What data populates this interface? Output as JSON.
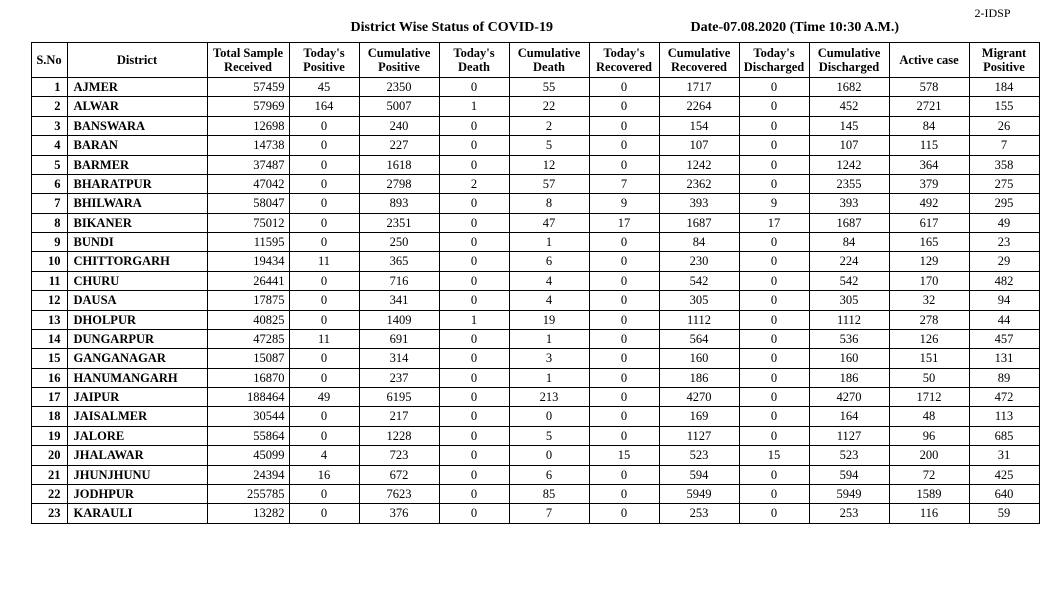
{
  "header": {
    "title": "District Wise Status of  COVID-19",
    "date": "Date-07.08.2020 (Time 10:30 A.M.)",
    "page_id": "2-IDSP"
  },
  "table": {
    "columns": [
      "S.No",
      "District",
      "Total Sample Received",
      "Today's Positive",
      "Cumulative Positive",
      "Today's Death",
      "Cumulative Death",
      "Today's Recovered",
      "Cumulative Recovered",
      "Today's Discharged",
      "Cumulative Discharged",
      "Active  case",
      "Migrant Positive"
    ],
    "rows": [
      {
        "sno": 1,
        "district": "AJMER",
        "sample": 57459,
        "tp": 45,
        "cp": 2350,
        "td": 0,
        "cd": 55,
        "tr": 0,
        "cr": 1717,
        "tdis": 0,
        "cdis": 1682,
        "active": 578,
        "mig": 184
      },
      {
        "sno": 2,
        "district": "ALWAR",
        "sample": 57969,
        "tp": 164,
        "cp": 5007,
        "td": 1,
        "cd": 22,
        "tr": 0,
        "cr": 2264,
        "tdis": 0,
        "cdis": 452,
        "active": 2721,
        "mig": 155
      },
      {
        "sno": 3,
        "district": "BANSWARA",
        "sample": 12698,
        "tp": 0,
        "cp": 240,
        "td": 0,
        "cd": 2,
        "tr": 0,
        "cr": 154,
        "tdis": 0,
        "cdis": 145,
        "active": 84,
        "mig": 26
      },
      {
        "sno": 4,
        "district": "BARAN",
        "sample": 14738,
        "tp": 0,
        "cp": 227,
        "td": 0,
        "cd": 5,
        "tr": 0,
        "cr": 107,
        "tdis": 0,
        "cdis": 107,
        "active": 115,
        "mig": 7
      },
      {
        "sno": 5,
        "district": "BARMER",
        "sample": 37487,
        "tp": 0,
        "cp": 1618,
        "td": 0,
        "cd": 12,
        "tr": 0,
        "cr": 1242,
        "tdis": 0,
        "cdis": 1242,
        "active": 364,
        "mig": 358
      },
      {
        "sno": 6,
        "district": "BHARATPUR",
        "sample": 47042,
        "tp": 0,
        "cp": 2798,
        "td": 2,
        "cd": 57,
        "tr": 7,
        "cr": 2362,
        "tdis": 0,
        "cdis": 2355,
        "active": 379,
        "mig": 275
      },
      {
        "sno": 7,
        "district": "BHILWARA",
        "sample": 58047,
        "tp": 0,
        "cp": 893,
        "td": 0,
        "cd": 8,
        "tr": 9,
        "cr": 393,
        "tdis": 9,
        "cdis": 393,
        "active": 492,
        "mig": 295
      },
      {
        "sno": 8,
        "district": "BIKANER",
        "sample": 75012,
        "tp": 0,
        "cp": 2351,
        "td": 0,
        "cd": 47,
        "tr": 17,
        "cr": 1687,
        "tdis": 17,
        "cdis": 1687,
        "active": 617,
        "mig": 49
      },
      {
        "sno": 9,
        "district": "BUNDI",
        "sample": 11595,
        "tp": 0,
        "cp": 250,
        "td": 0,
        "cd": 1,
        "tr": 0,
        "cr": 84,
        "tdis": 0,
        "cdis": 84,
        "active": 165,
        "mig": 23
      },
      {
        "sno": 10,
        "district": "CHITTORGARH",
        "sample": 19434,
        "tp": 11,
        "cp": 365,
        "td": 0,
        "cd": 6,
        "tr": 0,
        "cr": 230,
        "tdis": 0,
        "cdis": 224,
        "active": 129,
        "mig": 29
      },
      {
        "sno": 11,
        "district": "CHURU",
        "sample": 26441,
        "tp": 0,
        "cp": 716,
        "td": 0,
        "cd": 4,
        "tr": 0,
        "cr": 542,
        "tdis": 0,
        "cdis": 542,
        "active": 170,
        "mig": 482
      },
      {
        "sno": 12,
        "district": "DAUSA",
        "sample": 17875,
        "tp": 0,
        "cp": 341,
        "td": 0,
        "cd": 4,
        "tr": 0,
        "cr": 305,
        "tdis": 0,
        "cdis": 305,
        "active": 32,
        "mig": 94
      },
      {
        "sno": 13,
        "district": "DHOLPUR",
        "sample": 40825,
        "tp": 0,
        "cp": 1409,
        "td": 1,
        "cd": 19,
        "tr": 0,
        "cr": 1112,
        "tdis": 0,
        "cdis": 1112,
        "active": 278,
        "mig": 44
      },
      {
        "sno": 14,
        "district": "DUNGARPUR",
        "sample": 47285,
        "tp": 11,
        "cp": 691,
        "td": 0,
        "cd": 1,
        "tr": 0,
        "cr": 564,
        "tdis": 0,
        "cdis": 536,
        "active": 126,
        "mig": 457
      },
      {
        "sno": 15,
        "district": "GANGANAGAR",
        "sample": 15087,
        "tp": 0,
        "cp": 314,
        "td": 0,
        "cd": 3,
        "tr": 0,
        "cr": 160,
        "tdis": 0,
        "cdis": 160,
        "active": 151,
        "mig": 131
      },
      {
        "sno": 16,
        "district": "HANUMANGARH",
        "sample": 16870,
        "tp": 0,
        "cp": 237,
        "td": 0,
        "cd": 1,
        "tr": 0,
        "cr": 186,
        "tdis": 0,
        "cdis": 186,
        "active": 50,
        "mig": 89
      },
      {
        "sno": 17,
        "district": "JAIPUR",
        "sample": 188464,
        "tp": 49,
        "cp": 6195,
        "td": 0,
        "cd": 213,
        "tr": 0,
        "cr": 4270,
        "tdis": 0,
        "cdis": 4270,
        "active": 1712,
        "mig": 472
      },
      {
        "sno": 18,
        "district": "JAISALMER",
        "sample": 30544,
        "tp": 0,
        "cp": 217,
        "td": 0,
        "cd": 0,
        "tr": 0,
        "cr": 169,
        "tdis": 0,
        "cdis": 164,
        "active": 48,
        "mig": 113
      },
      {
        "sno": 19,
        "district": "JALORE",
        "sample": 55864,
        "tp": 0,
        "cp": 1228,
        "td": 0,
        "cd": 5,
        "tr": 0,
        "cr": 1127,
        "tdis": 0,
        "cdis": 1127,
        "active": 96,
        "mig": 685
      },
      {
        "sno": 20,
        "district": "JHALAWAR",
        "sample": 45099,
        "tp": 4,
        "cp": 723,
        "td": 0,
        "cd": 0,
        "tr": 15,
        "cr": 523,
        "tdis": 15,
        "cdis": 523,
        "active": 200,
        "mig": 31
      },
      {
        "sno": 21,
        "district": "JHUNJHUNU",
        "sample": 24394,
        "tp": 16,
        "cp": 672,
        "td": 0,
        "cd": 6,
        "tr": 0,
        "cr": 594,
        "tdis": 0,
        "cdis": 594,
        "active": 72,
        "mig": 425
      },
      {
        "sno": 22,
        "district": "JODHPUR",
        "sample": 255785,
        "tp": 0,
        "cp": 7623,
        "td": 0,
        "cd": 85,
        "tr": 0,
        "cr": 5949,
        "tdis": 0,
        "cdis": 5949,
        "active": 1589,
        "mig": 640
      },
      {
        "sno": 23,
        "district": "KARAULI",
        "sample": 13282,
        "tp": 0,
        "cp": 376,
        "td": 0,
        "cd": 7,
        "tr": 0,
        "cr": 253,
        "tdis": 0,
        "cdis": 253,
        "active": 116,
        "mig": 59
      }
    ]
  },
  "style": {
    "background_color": "#ffffff",
    "text_color": "#000000",
    "border_color": "#000000",
    "font_family": "Times New Roman",
    "header_fontsize_pt": 14,
    "cell_fontsize_pt": 12.5
  }
}
